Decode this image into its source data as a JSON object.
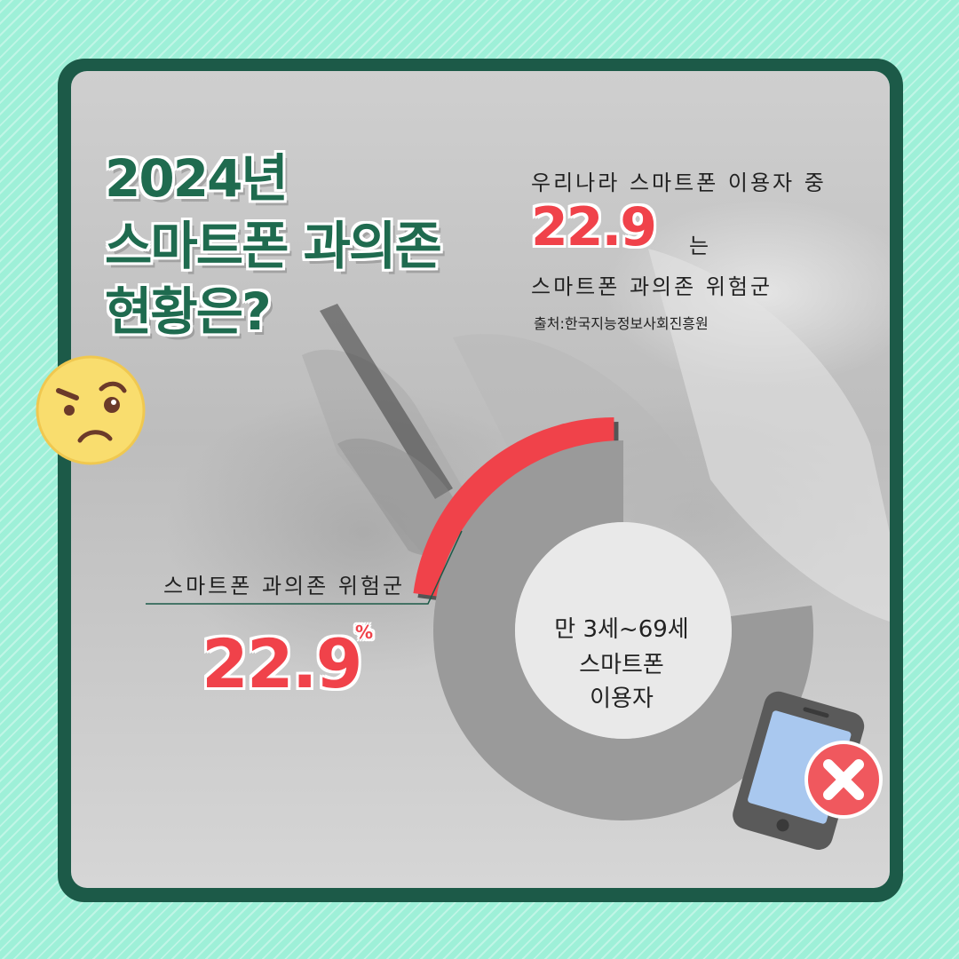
{
  "title": {
    "line1": "2024년",
    "line2": "스마트폰 과의존",
    "line3": "현황은?"
  },
  "summary": {
    "intro": "우리나라 스마트폰 이용자 중",
    "value": "22.9",
    "particle": "는",
    "group": "스마트폰 과의존 위험군",
    "source": "출처:한국지능정보사회진흥원"
  },
  "callout": {
    "label": "스마트폰 과의존 위험군",
    "value": "22.9",
    "unit": "%"
  },
  "center": {
    "line1": "만 3세~69세",
    "line2": "스마트폰",
    "line3": "이용자"
  },
  "icons": {
    "emoji": "confused-face-icon",
    "phone": "phone-with-x-icon"
  },
  "colors": {
    "highlight": "#f0424a",
    "rest": "#9a9a9a",
    "title": "#1f6b4f"
  },
  "chart_data": {
    "type": "pie",
    "categories": [
      "스마트폰 과의존 위험군",
      ""
    ],
    "values": [
      22.9,
      77.1
    ],
    "colors": [
      "#f0424a",
      "#9a9a9a"
    ]
  }
}
